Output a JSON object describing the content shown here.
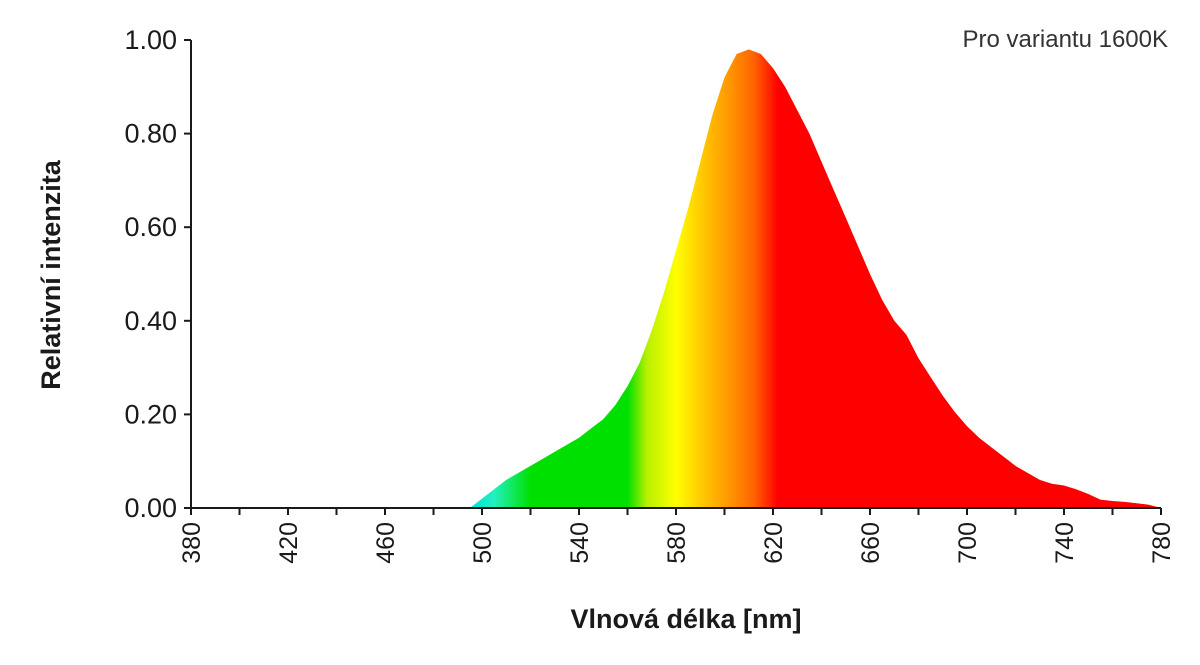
{
  "chart_data": {
    "type": "area",
    "title": "",
    "annotation": "Pro variantu 1600K",
    "xlabel": "Vlnová délka [nm]",
    "ylabel": "Relativní intenzita",
    "xlim": [
      380,
      780
    ],
    "ylim": [
      0,
      1
    ],
    "x_ticks": [
      "380",
      "420",
      "460",
      "500",
      "540",
      "580",
      "620",
      "660",
      "700",
      "740",
      "780"
    ],
    "y_ticks": [
      "0.00",
      "0.20",
      "0.40",
      "0.60",
      "0.80",
      "1.00"
    ],
    "grid": false,
    "legend": "none",
    "fill": "visible-spectrum colors by wavelength",
    "series": [
      {
        "x": [
          380,
          495,
          500,
          505,
          510,
          515,
          520,
          525,
          530,
          535,
          540,
          545,
          550,
          555,
          560,
          565,
          570,
          575,
          580,
          585,
          590,
          595,
          600,
          605,
          610,
          615,
          620,
          625,
          630,
          635,
          640,
          645,
          650,
          655,
          660,
          665,
          670,
          675,
          680,
          685,
          690,
          695,
          700,
          705,
          710,
          715,
          720,
          725,
          730,
          735,
          740,
          745,
          750,
          755,
          760,
          765,
          770,
          775,
          780
        ],
        "y": [
          0.0,
          0.0,
          0.02,
          0.04,
          0.06,
          0.075,
          0.09,
          0.105,
          0.12,
          0.135,
          0.15,
          0.17,
          0.19,
          0.22,
          0.26,
          0.31,
          0.38,
          0.46,
          0.55,
          0.64,
          0.74,
          0.84,
          0.92,
          0.97,
          0.98,
          0.97,
          0.94,
          0.9,
          0.85,
          0.8,
          0.74,
          0.68,
          0.62,
          0.56,
          0.5,
          0.445,
          0.4,
          0.37,
          0.32,
          0.28,
          0.24,
          0.205,
          0.175,
          0.15,
          0.13,
          0.11,
          0.09,
          0.075,
          0.06,
          0.052,
          0.048,
          0.04,
          0.03,
          0.018,
          0.015,
          0.013,
          0.01,
          0.007,
          0.0
        ]
      }
    ]
  }
}
